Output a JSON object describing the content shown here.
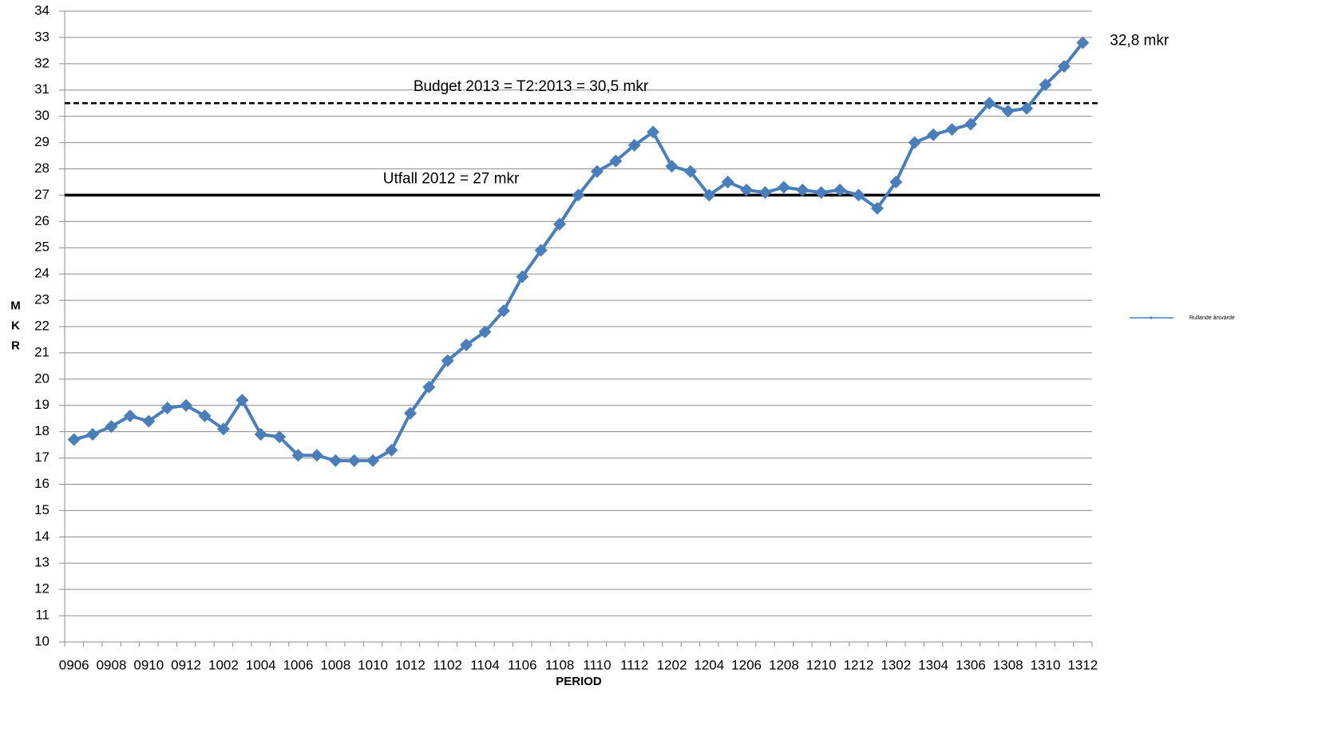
{
  "chart_data": {
    "type": "line",
    "y_label": "MKR",
    "x_label": "PERIOD",
    "categories": [
      "0906",
      null,
      "0908",
      null,
      "0910",
      null,
      "0912",
      null,
      "1002",
      null,
      "1004",
      null,
      "1006",
      null,
      "1008",
      null,
      "1010",
      null,
      "1012",
      null,
      "1102",
      null,
      "1104",
      null,
      "1106",
      null,
      "1108",
      null,
      "1110",
      null,
      "1112",
      null,
      "1202",
      null,
      "1204",
      null,
      "1206",
      null,
      "1208",
      null,
      "1210",
      null,
      "1212",
      null,
      "1302",
      null,
      "1304",
      null,
      "1306",
      null,
      "1308",
      null,
      "1310",
      null,
      "1312"
    ],
    "series": [
      {
        "name": "Rullande årsvärde",
        "color": "#4a7ebb",
        "values": [
          17.7,
          17.9,
          18.2,
          18.6,
          18.4,
          18.9,
          19.0,
          18.6,
          18.1,
          19.2,
          17.9,
          17.8,
          17.1,
          17.1,
          16.9,
          16.9,
          16.9,
          17.3,
          18.7,
          19.7,
          20.7,
          21.3,
          21.8,
          22.6,
          23.9,
          24.9,
          25.9,
          27.0,
          27.9,
          28.3,
          28.9,
          29.4,
          28.1,
          27.9,
          27.0,
          27.5,
          27.2,
          27.1,
          27.3,
          27.2,
          27.1,
          27.2,
          27.0,
          26.5,
          27.5,
          29.0,
          29.3,
          29.5,
          29.7,
          30.5,
          30.2,
          30.3,
          31.2,
          31.9,
          32.8
        ],
        "value_labels": [
          null,
          null,
          null,
          null,
          null,
          null,
          null,
          null,
          null,
          null,
          null,
          null,
          null,
          null,
          null,
          null,
          null,
          null,
          null,
          null,
          null,
          null,
          null,
          null,
          null,
          null,
          null,
          null,
          null,
          null,
          null,
          null,
          null,
          null,
          null,
          null,
          null,
          null,
          null,
          null,
          null,
          null,
          null,
          null,
          null,
          null,
          null,
          null,
          null,
          null,
          null,
          null,
          null,
          null,
          "32,8 mkr"
        ]
      }
    ],
    "reference_lines": [
      {
        "value": 30.5,
        "label": "Budget 2013 =  T2:2013 = 30,5 mkr",
        "style": "dashed"
      },
      {
        "value": 27,
        "label": "Utfall 2012 = 27 mkr",
        "style": "solid"
      }
    ],
    "ylim": [
      10,
      34
    ],
    "yticks": [
      10,
      11,
      12,
      13,
      14,
      15,
      16,
      17,
      18,
      19,
      20,
      21,
      22,
      23,
      24,
      25,
      26,
      27,
      28,
      29,
      30,
      31,
      32,
      33,
      34
    ],
    "grid": true,
    "legend": "right"
  }
}
